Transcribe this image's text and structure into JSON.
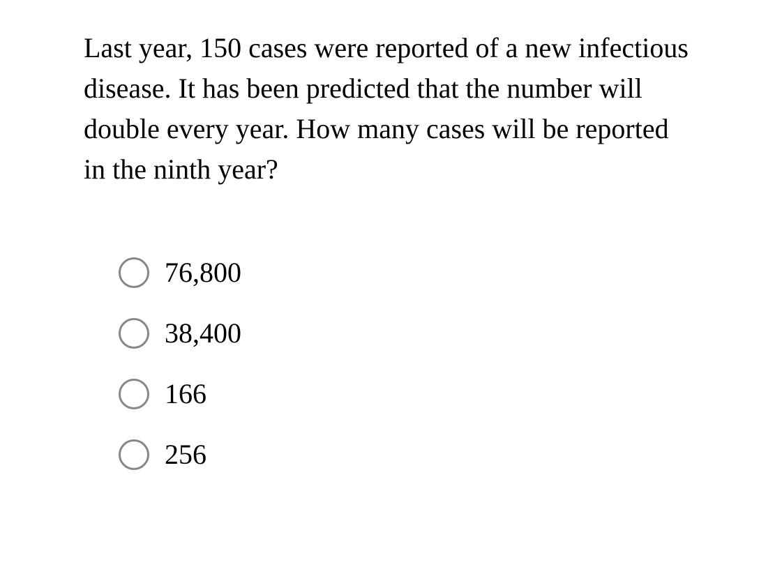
{
  "question": {
    "text": "Last year, 150 cases were reported of a new infectious disease. It has been predicted that the number will double every year. How many cases will be reported in the ninth year?",
    "text_color": "#000000",
    "font_size": 40
  },
  "options": [
    {
      "label": "76,800"
    },
    {
      "label": "38,400"
    },
    {
      "label": "166"
    },
    {
      "label": "256"
    }
  ],
  "styling": {
    "background_color": "#ffffff",
    "radio_border_color": "#878787",
    "radio_size": 44,
    "option_font_size": 40,
    "font_family": "Times New Roman"
  }
}
